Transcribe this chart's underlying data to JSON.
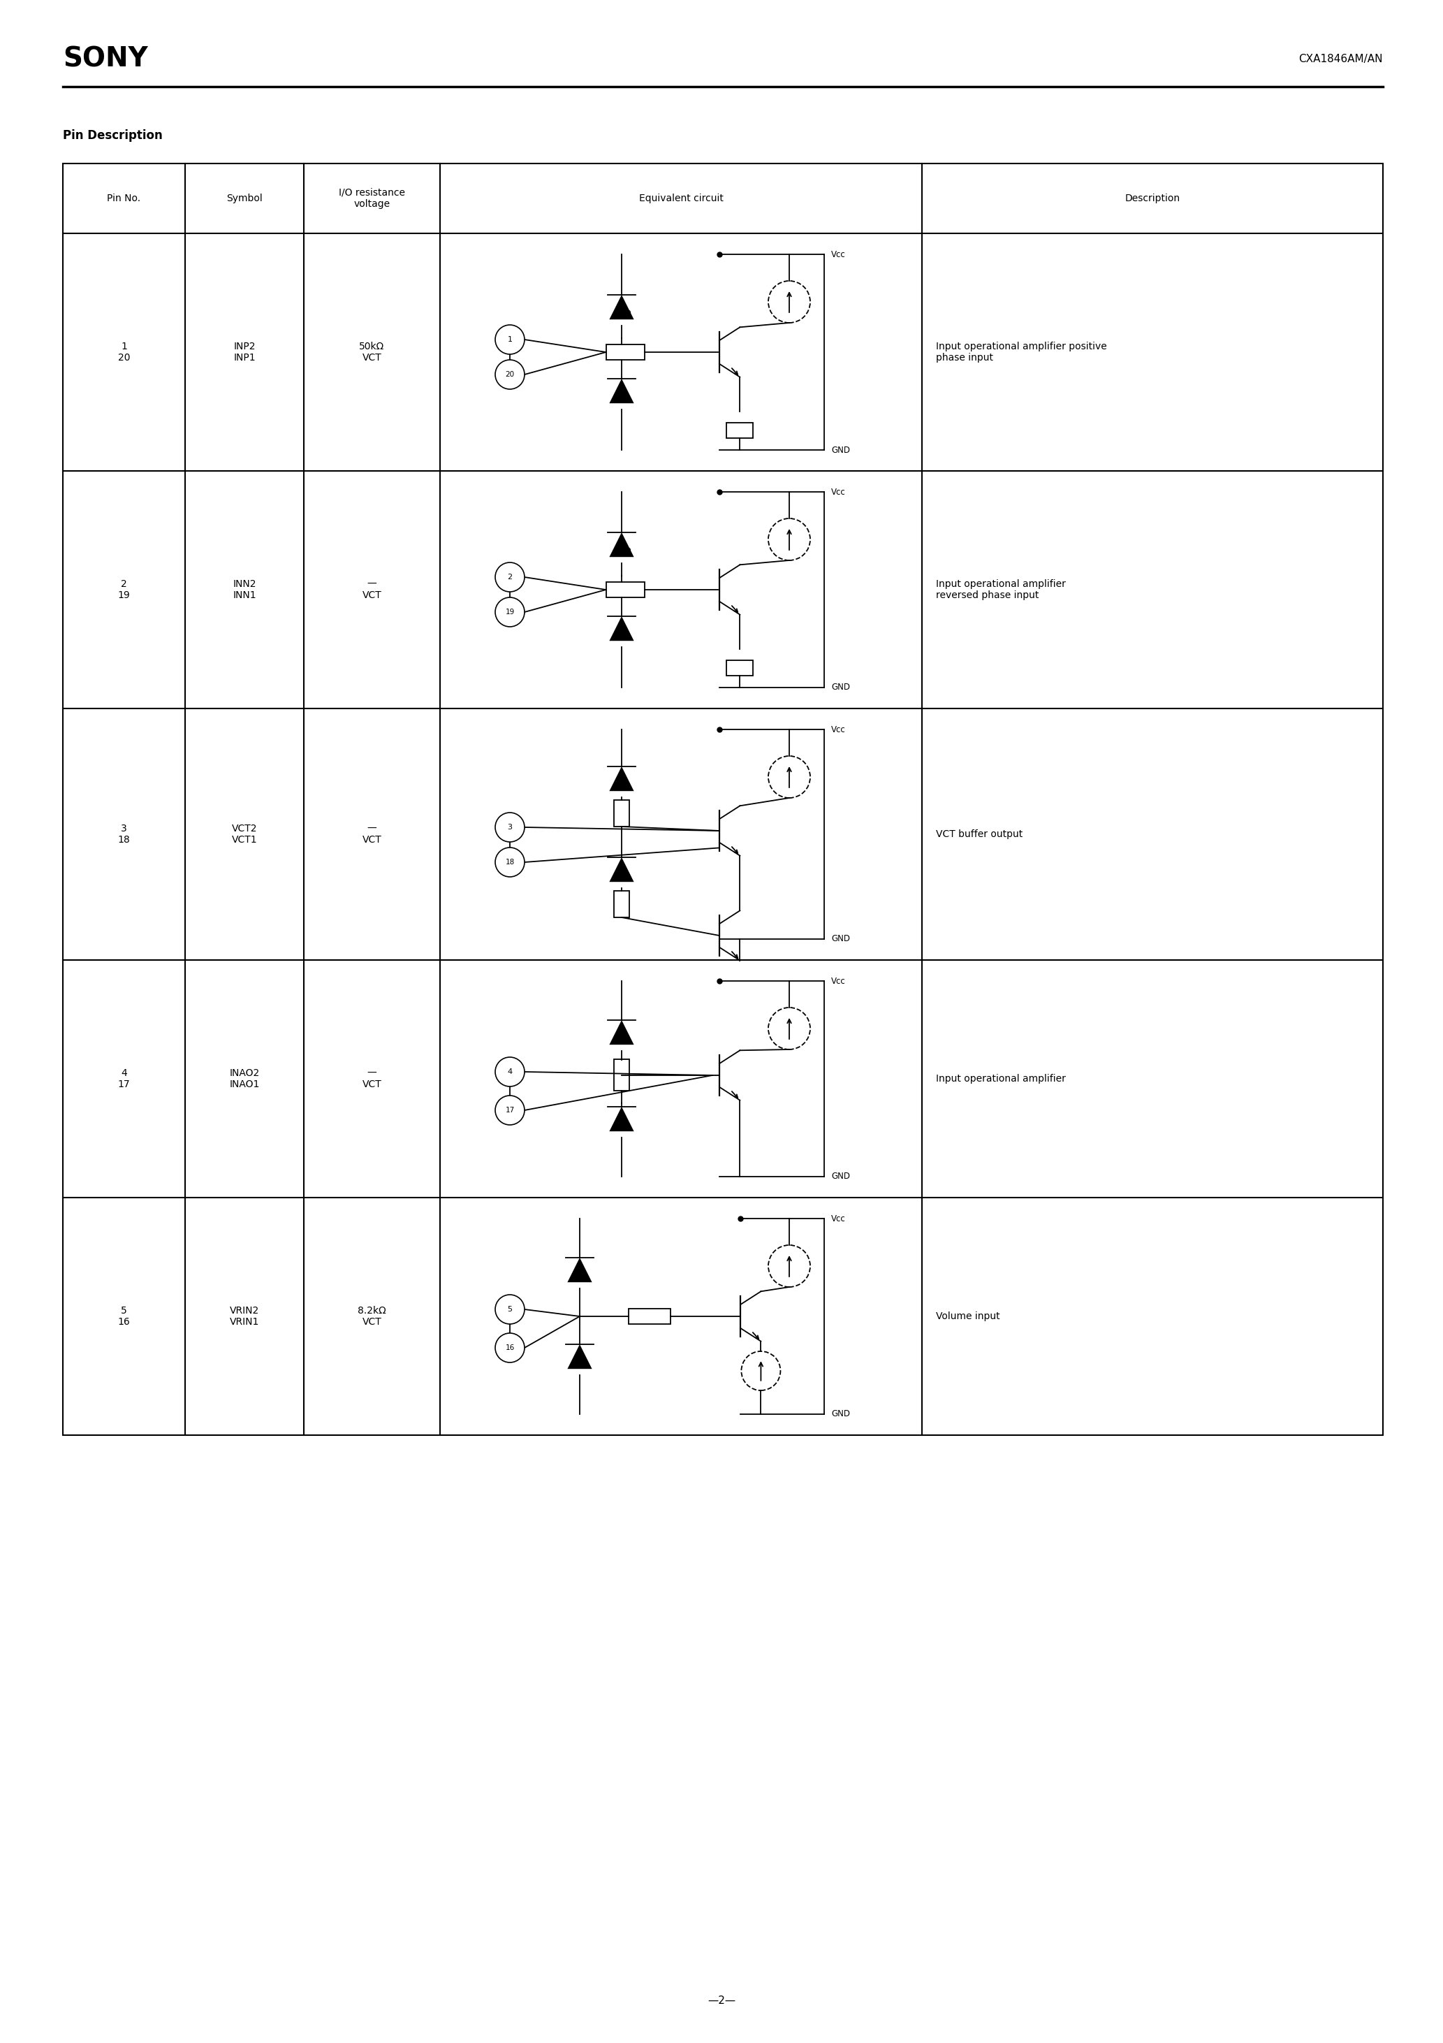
{
  "title_company": "SONY",
  "title_part": "CXA1846AM/AN",
  "section_title": "Pin Description",
  "table_headers": [
    "Pin No.",
    "Symbol",
    "I/O resistance\nvoltage",
    "Equivalent circuit",
    "Description"
  ],
  "rows": [
    {
      "pin_no": "1\n20",
      "symbol": "INP2\nINP1",
      "io_res": "50kΩ\nVCT",
      "circuit_type": "inp",
      "pin_numbers": [
        "1",
        "20"
      ],
      "description": "Input operational amplifier positive\nphase input"
    },
    {
      "pin_no": "2\n19",
      "symbol": "INN2\nINN1",
      "io_res": "—\nVCT",
      "circuit_type": "inn",
      "pin_numbers": [
        "2",
        "19"
      ],
      "description": "Input operational amplifier\nreversed phase input"
    },
    {
      "pin_no": "3\n18",
      "symbol": "VCT2\nVCT1",
      "io_res": "—\nVCT",
      "circuit_type": "vct",
      "pin_numbers": [
        "3",
        "18"
      ],
      "description": "VCT buffer output"
    },
    {
      "pin_no": "4\n17",
      "symbol": "INAO2\nINAO1",
      "io_res": "—\nVCT",
      "circuit_type": "inao",
      "pin_numbers": [
        "4",
        "17"
      ],
      "description": "Input operational amplifier"
    },
    {
      "pin_no": "5\n16",
      "symbol": "VRIN2\nVRIN1",
      "io_res": "8.2kΩ\nVCT",
      "circuit_type": "vrin",
      "pin_numbers": [
        "5",
        "16"
      ],
      "description": "Volume input"
    }
  ],
  "page_number": "2",
  "bg_color": "#ffffff",
  "text_color": "#000000",
  "line_color": "#000000"
}
